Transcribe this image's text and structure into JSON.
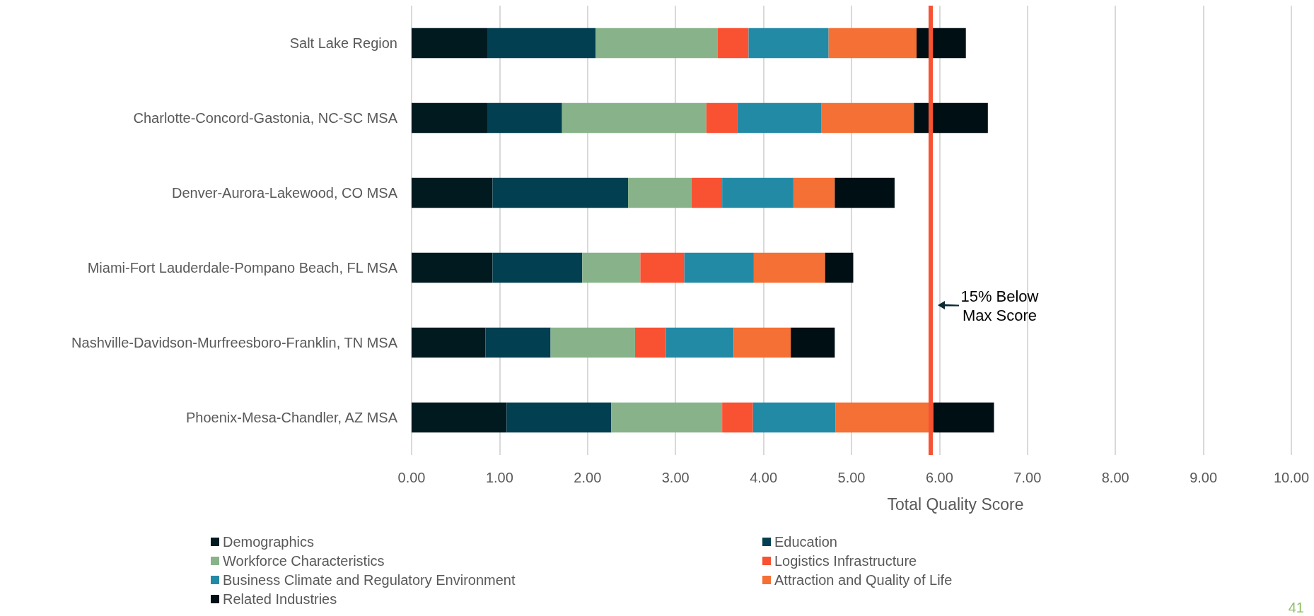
{
  "chart_data": {
    "type": "bar",
    "orientation": "horizontal",
    "stacked": true,
    "xlabel": "Total Quality Score",
    "categories": [
      "Salt Lake Region",
      "Charlotte-Concord-Gastonia, NC-SC MSA",
      "Denver-Aurora-Lakewood, CO MSA",
      "Miami-Fort Lauderdale-Pompano Beach, FL MSA",
      "Nashville-Davidson-Murfreesboro-Franklin, TN MSA",
      "Phoenix-Mesa-Chandler, AZ MSA"
    ],
    "series": [
      {
        "name": "Demographics",
        "color": "#011a20",
        "values": [
          0.86,
          0.86,
          0.92,
          0.92,
          0.84,
          1.08
        ]
      },
      {
        "name": "Education",
        "color": "#023f51",
        "values": [
          1.23,
          0.85,
          1.54,
          1.02,
          0.74,
          1.19
        ]
      },
      {
        "name": "Workforce Characteristics",
        "color": "#88b38a",
        "values": [
          1.39,
          1.64,
          0.72,
          0.66,
          0.96,
          1.26
        ]
      },
      {
        "name": "Logistics Infrastructure",
        "color": "#f85233",
        "values": [
          0.35,
          0.35,
          0.35,
          0.5,
          0.35,
          0.35
        ]
      },
      {
        "name": "Business Climate and Regulatory Environment",
        "color": "#238aa6",
        "values": [
          0.91,
          0.96,
          0.81,
          0.79,
          0.77,
          0.94
        ]
      },
      {
        "name": "Attraction and Quality of Life",
        "color": "#f57034",
        "values": [
          1.0,
          1.05,
          0.47,
          0.81,
          0.65,
          1.11
        ]
      },
      {
        "name": "Related Industries",
        "color": "#000f13",
        "values": [
          0.56,
          0.84,
          0.68,
          0.32,
          0.5,
          0.69
        ]
      }
    ],
    "xlim": [
      0,
      10
    ],
    "xticks": [
      {
        "value": 0,
        "label": "0.00"
      },
      {
        "value": 1,
        "label": "1.00"
      },
      {
        "value": 2,
        "label": "2.00"
      },
      {
        "value": 3,
        "label": "3.00"
      },
      {
        "value": 4,
        "label": "4.00"
      },
      {
        "value": 5,
        "label": "5.00"
      },
      {
        "value": 6,
        "label": "6.00"
      },
      {
        "value": 7,
        "label": "7.00"
      },
      {
        "value": 8,
        "label": "8.00"
      },
      {
        "value": 9,
        "label": "9.00"
      },
      {
        "value": 10,
        "label": "10.00"
      }
    ],
    "grid": "x",
    "legend": "bottom",
    "ref_lines": [
      {
        "axis": "x",
        "value": 5.9,
        "label": "15% Below Max Score",
        "color": "#f85233"
      }
    ],
    "annotations": [
      "41"
    ]
  }
}
